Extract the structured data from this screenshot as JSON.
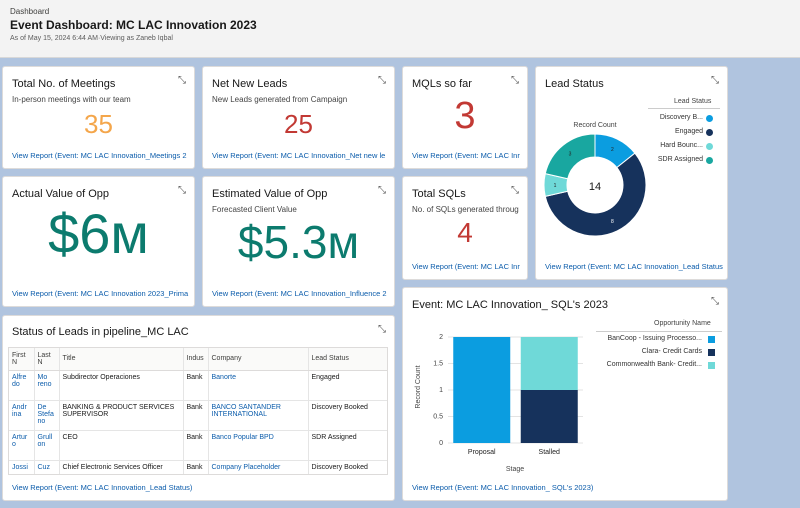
{
  "header": {
    "crumb": "Dashboard",
    "title": "Event Dashboard: MC LAC Innovation 2023",
    "sub": "As of May 15, 2024 6:44 AM·Viewing as Zaneb Iqbal"
  },
  "expand_icon": "⤡",
  "meetings": {
    "title": "Total No. of Meetings",
    "sub": "In-person meetings with our team",
    "value": "35",
    "color": "#f4a64b",
    "link": "View Report (Event: MC LAC Innovation_Meetings 2"
  },
  "leads": {
    "title": "Net New Leads",
    "sub": "New Leads generated from Campaign",
    "value": "25",
    "color": "#c23934",
    "link": "View Report (Event: MC LAC Innovation_Net new le"
  },
  "mqls": {
    "title": "MQLs so far",
    "value": "3",
    "color": "#c23934",
    "link": "View Report (Event: MC LAC Inr"
  },
  "actual_opp": {
    "title": "Actual Value of Opp",
    "value": "$6м",
    "color": "#0c7b6e",
    "link": "View Report (Event: MC LAC Innovation 2023_Prima"
  },
  "est_opp": {
    "title": "Estimated Value of Opp",
    "sub": "Forecasted Client Value",
    "value": "$5.3м",
    "color": "#0c7b6e",
    "link": "View Report (Event: MC LAC Innovation_Influence 2"
  },
  "sqls": {
    "title": "Total SQLs",
    "sub": "No. of SQLs generated throug",
    "value": "4",
    "color": "#c23934",
    "link": "View Report (Event: MC LAC Inr"
  },
  "lead_status": {
    "title": "Lead Status",
    "link": "View Report (Event: MC LAC Innovation_Lead Status",
    "donut_label": "Record Count",
    "total": "14",
    "legend_title": "Lead Status",
    "legend": [
      {
        "label": "Discovery B...",
        "color": "#0b9de0"
      },
      {
        "label": "Engaged",
        "color": "#16325c"
      },
      {
        "label": "Hard Bounc...",
        "color": "#6fd9d8"
      },
      {
        "label": "SDR Assigned",
        "color": "#19a7a0"
      }
    ]
  },
  "pipeline": {
    "title": "Status of Leads in pipeline_MC LAC",
    "link": "View Report (Event: MC LAC Innovation_Lead Status)",
    "columns": [
      "First N",
      "Last N",
      "Title",
      "Indus",
      "Company",
      "Lead Status"
    ],
    "rows": [
      {
        "first": "Alfre do",
        "last": "Mo reno",
        "title": "Subdirector Operaciones",
        "industry": "Bank",
        "company": "Banorte",
        "status": "Engaged"
      },
      {
        "first": "Andr ina",
        "last": "De Stefa no",
        "title": "BANKING & PRODUCT SERVICES SUPERVISOR",
        "industry": "Bank",
        "company": "BANCO SANTANDER INTERNATIONAL",
        "status": "Discovery Booked"
      },
      {
        "first": "Artur o",
        "last": "Grull on",
        "title": "CEO",
        "industry": "Bank",
        "company": "Banco Popular BPD",
        "status": "SDR Assigned"
      },
      {
        "first": "Jossi",
        "last": "Cuz",
        "title": "Chief Electronic Services Officer",
        "industry": "Bank",
        "company": "Company Placeholder",
        "status": "Discovery Booked"
      }
    ]
  },
  "sql_chart": {
    "title": "Event: MC LAC Innovation_ SQL's 2023",
    "link": "View Report (Event: MC LAC Innovation_ SQL's 2023)",
    "legend_title": "Opportunity Name"
  },
  "chart_data": [
    {
      "type": "pie",
      "title": "Lead Status",
      "label": "Record Count",
      "total": 14,
      "categories": [
        "Discovery B...",
        "Engaged",
        "Hard Bounc...",
        "SDR Assigned"
      ],
      "values": [
        2,
        8,
        1,
        3
      ],
      "colors": [
        "#0b9de0",
        "#16325c",
        "#6fd9d8",
        "#19a7a0"
      ]
    },
    {
      "type": "bar",
      "stacked": true,
      "title": "Event: MC LAC Innovation_ SQL's 2023",
      "xlabel": "Stage",
      "ylabel": "Record Count",
      "categories": [
        "Proposal",
        "Stalled"
      ],
      "ylim": [
        0,
        2
      ],
      "yticks": [
        0,
        0.5,
        1,
        1.5,
        2
      ],
      "series": [
        {
          "name": "BanCoop - Issuing Processo...",
          "values": [
            2,
            0
          ],
          "color": "#0b9de0"
        },
        {
          "name": "Clara- Credit Cards",
          "values": [
            0,
            1
          ],
          "color": "#16325c"
        },
        {
          "name": "Commonwealth Bank- Credit...",
          "values": [
            0,
            1
          ],
          "color": "#6fd9d8"
        }
      ]
    }
  ]
}
